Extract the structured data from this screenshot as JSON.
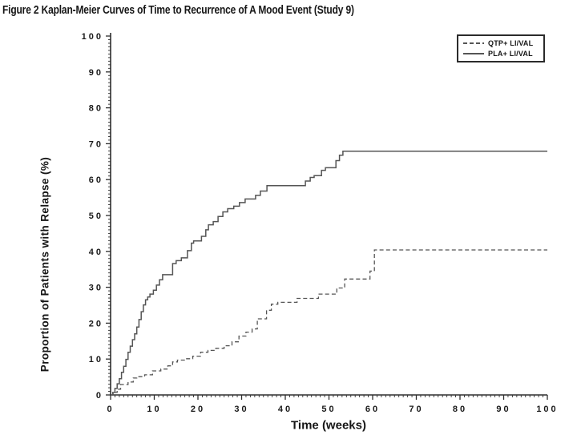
{
  "figure": {
    "title": "Figure 2 Kaplan-Meier Curves of Time to Recurrence of A Mood Event (Study 9)"
  },
  "legend": {
    "items": [
      {
        "label": "QTP+ LI/VAL",
        "style": "dashed"
      },
      {
        "label": "PLA+ LI/VAL",
        "style": "solid"
      }
    ]
  },
  "colors": {
    "ink": "#161616",
    "axis": "#2e2e2e",
    "curve": "#555555",
    "background": "#ffffff"
  },
  "chart_data": {
    "type": "line",
    "subtype": "kaplan-meier-step",
    "title": "Figure 2 Kaplan-Meier Curves of Time to Recurrence of A Mood Event (Study 9)",
    "xlabel": "Time (weeks)",
    "ylabel": "Proportion of Patients with Relapse (%)",
    "xlim": [
      0,
      100
    ],
    "ylim": [
      0,
      100
    ],
    "x_major_ticks": [
      0,
      10,
      20,
      30,
      40,
      50,
      60,
      70,
      80,
      90,
      100
    ],
    "y_major_ticks": [
      0,
      10,
      20,
      30,
      40,
      50,
      60,
      70,
      80,
      90,
      100
    ],
    "minor_tick_step": 1,
    "grid": false,
    "legend_position": "top-right",
    "series": [
      {
        "name": "QTP+ LI/VAL",
        "line_style": "dashed",
        "color": "#555555",
        "points": [
          [
            0,
            0
          ],
          [
            0.6,
            0.7
          ],
          [
            1.5,
            1.6
          ],
          [
            2.3,
            2.9
          ],
          [
            4,
            3.6
          ],
          [
            5.2,
            4.7
          ],
          [
            6,
            5.1
          ],
          [
            7.8,
            5.6
          ],
          [
            9.6,
            6.7
          ],
          [
            11.5,
            7.2
          ],
          [
            13.1,
            8.1
          ],
          [
            14.2,
            9.2
          ],
          [
            15.3,
            9.7
          ],
          [
            17,
            10.1
          ],
          [
            18.8,
            10.8
          ],
          [
            20.6,
            11.9
          ],
          [
            22.3,
            12.4
          ],
          [
            24.1,
            13
          ],
          [
            26,
            13.7
          ],
          [
            27.8,
            14.8
          ],
          [
            29.4,
            16.4
          ],
          [
            31,
            17.5
          ],
          [
            32.4,
            18.4
          ],
          [
            33.6,
            21.2
          ],
          [
            35.7,
            23.6
          ],
          [
            36.8,
            25.3
          ],
          [
            38.3,
            25.8
          ],
          [
            42.7,
            26.9
          ],
          [
            47.6,
            28.1
          ],
          [
            51.8,
            29.8
          ],
          [
            53.6,
            32.3
          ],
          [
            59.4,
            34.5
          ],
          [
            60.4,
            40.4
          ],
          [
            100,
            40.4
          ]
        ]
      },
      {
        "name": "PLA+ LI/VAL",
        "line_style": "solid",
        "color": "#555555",
        "points": [
          [
            0,
            0
          ],
          [
            0.5,
            0.7
          ],
          [
            1,
            1.8
          ],
          [
            1.5,
            3.1
          ],
          [
            2,
            4.5
          ],
          [
            2.5,
            6.3
          ],
          [
            3,
            8
          ],
          [
            3.5,
            9.9
          ],
          [
            4,
            11.9
          ],
          [
            4.5,
            13.6
          ],
          [
            5,
            15.4
          ],
          [
            5.5,
            17
          ],
          [
            6,
            18.9
          ],
          [
            6.5,
            21
          ],
          [
            7,
            23.2
          ],
          [
            7.5,
            25.1
          ],
          [
            8,
            26.5
          ],
          [
            8.5,
            27.3
          ],
          [
            9,
            28.1
          ],
          [
            9.8,
            29.2
          ],
          [
            10.5,
            30.6
          ],
          [
            11.2,
            32.1
          ],
          [
            11.9,
            33.5
          ],
          [
            14.2,
            36.6
          ],
          [
            15,
            37.4
          ],
          [
            16.2,
            38.2
          ],
          [
            17.6,
            40.2
          ],
          [
            18.5,
            42.3
          ],
          [
            19,
            42.9
          ],
          [
            20.8,
            44.2
          ],
          [
            21.8,
            46
          ],
          [
            22.4,
            47.4
          ],
          [
            23.5,
            48.3
          ],
          [
            24.6,
            49.7
          ],
          [
            25.7,
            51
          ],
          [
            26.8,
            51.9
          ],
          [
            28.2,
            52.6
          ],
          [
            29.5,
            53.6
          ],
          [
            30.8,
            54.6
          ],
          [
            33.2,
            55.6
          ],
          [
            34.3,
            56.8
          ],
          [
            35.8,
            58.3
          ],
          [
            44.6,
            59.6
          ],
          [
            45.7,
            60.6
          ],
          [
            46.6,
            61.1
          ],
          [
            48.3,
            62.6
          ],
          [
            49.2,
            63.3
          ],
          [
            51.6,
            65.3
          ],
          [
            52.4,
            66.8
          ],
          [
            53.2,
            67.9
          ],
          [
            100,
            67.9
          ]
        ]
      }
    ]
  }
}
